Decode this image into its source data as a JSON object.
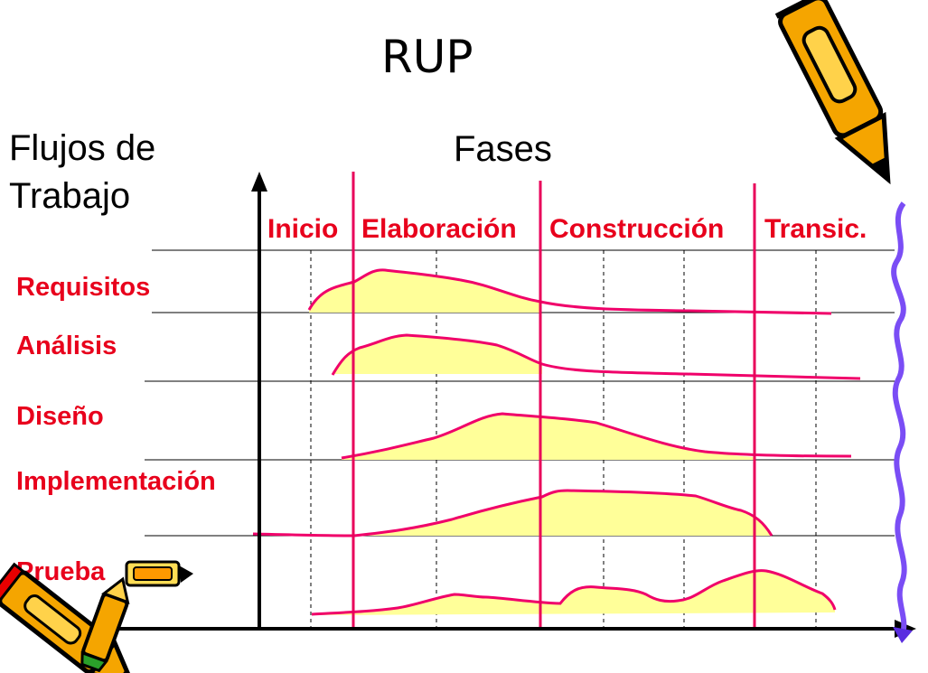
{
  "title": "RUP",
  "workflows_heading": [
    "Flujos de",
    "Trabajo"
  ],
  "phases_heading": "Fases",
  "phases": [
    "Inicio",
    "Elaboración",
    "Construcción",
    "Transic."
  ],
  "workflows": [
    "Requisitos",
    "Análisis",
    "Diseño",
    "Implementación",
    "Prueba"
  ],
  "colors": {
    "phase_line": "#e8005a",
    "effort_fill": "#ffff99",
    "effort_line": "#f0006a",
    "label_red": "#e8001c",
    "wavy_line": "#7a4df5"
  },
  "icons": [
    "pencil-icon",
    "pencil-icon",
    "pencil-icon"
  ]
}
